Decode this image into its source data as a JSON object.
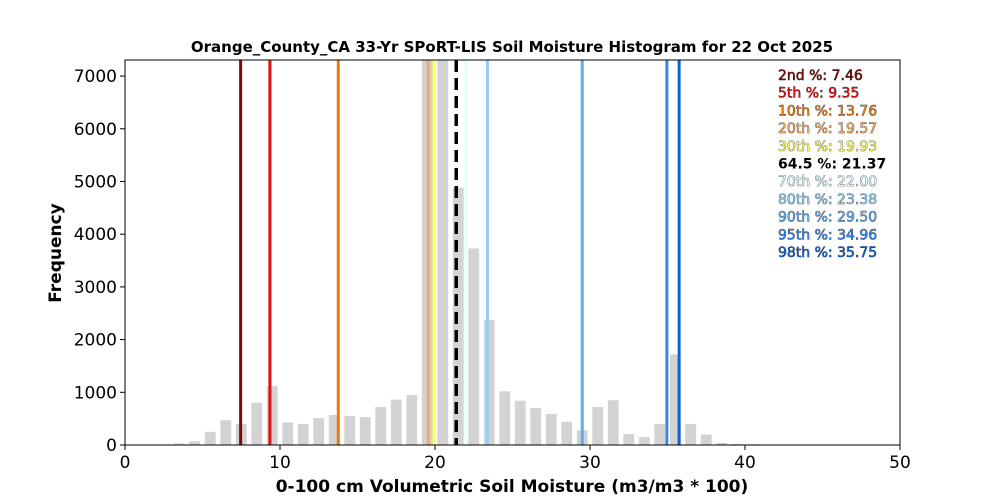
{
  "chart_data": {
    "type": "bar",
    "title": "Orange_County_CA 33-Yr SPoRT-LIS Soil Moisture Histogram for 22 Oct 2025",
    "xlabel": "0-100 cm Volumetric Soil Moisture (m3/m3 * 100)",
    "ylabel": "Frequency",
    "xlim": [
      0,
      50
    ],
    "ylim": [
      0,
      7305
    ],
    "xticks": [
      0,
      10,
      20,
      30,
      40,
      50
    ],
    "yticks": [
      0,
      1000,
      2000,
      3000,
      4000,
      5000,
      6000,
      7000
    ],
    "grid": false,
    "bar_color": "#d3d3d3",
    "bins": [
      3.5,
      4.5,
      5.5,
      6.5,
      7.5,
      8.5,
      9.5,
      10.5,
      11.5,
      12.5,
      13.5,
      14.5,
      15.5,
      16.5,
      17.5,
      18.5,
      19.5,
      20.5,
      21.5,
      22.5,
      23.5,
      24.5,
      25.5,
      26.5,
      27.5,
      28.5,
      29.5,
      30.5,
      31.5,
      32.5,
      33.5,
      34.5,
      35.5,
      36.5,
      37.5,
      38.5,
      39.5,
      40.5
    ],
    "values": [
      30,
      70,
      250,
      470,
      400,
      800,
      1120,
      430,
      400,
      510,
      570,
      550,
      530,
      720,
      860,
      950,
      7300,
      7300,
      4880,
      3730,
      2370,
      1020,
      840,
      700,
      590,
      440,
      280,
      720,
      850,
      210,
      150,
      400,
      1720,
      400,
      200,
      40,
      20,
      15
    ],
    "percentiles": [
      {
        "label": "2nd %: 7.46",
        "value": 7.46,
        "color": "#7a0a0a",
        "dashed": false
      },
      {
        "label": "5th %: 9.35",
        "value": 9.35,
        "color": "#e01010",
        "dashed": false
      },
      {
        "label": "10th %: 13.76",
        "value": 13.76,
        "color": "#e87a10",
        "dashed": false
      },
      {
        "label": "20th %: 19.57",
        "value": 19.57,
        "color": "#f5a860",
        "dashed": false
      },
      {
        "label": "30th %: 19.93",
        "value": 19.93,
        "color": "#ffff60",
        "dashed": false
      },
      {
        "label": "64.5 %: 21.37",
        "value": 21.37,
        "color": "#000000",
        "dashed": true
      },
      {
        "label": "70th %: 22.00",
        "value": 22.0,
        "color": "#e0ffff",
        "dashed": false
      },
      {
        "label": "80th %: 23.38",
        "value": 23.38,
        "color": "#90d0f5",
        "dashed": false
      },
      {
        "label": "90th %: 29.50",
        "value": 29.5,
        "color": "#60aaee",
        "dashed": false
      },
      {
        "label": "95th %: 34.96",
        "value": 34.96,
        "color": "#3388ee",
        "dashed": false
      },
      {
        "label": "98th %: 35.75",
        "value": 35.75,
        "color": "#1060d0",
        "dashed": false
      }
    ],
    "legend_placement": "top-right"
  }
}
